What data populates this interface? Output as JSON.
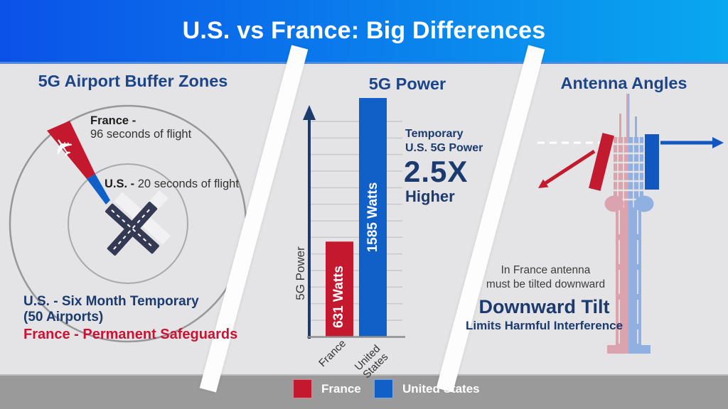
{
  "header": {
    "title": "U.S. vs France: Big Differences"
  },
  "panels": {
    "buffer_zones": {
      "title": "5G Airport Buffer Zones",
      "france_label": "France -",
      "france_value": "96 seconds of flight",
      "us_label": "U.S. -",
      "us_value": " 20 seconds of flight",
      "us_note_line1": "U.S. - Six Month Temporary",
      "us_note_line2": "(50 Airports)",
      "france_note": "France - Permanent Safeguards"
    },
    "power": {
      "title": "5G Power",
      "annotation": {
        "line1": "Temporary",
        "line2": "U.S. 5G Power",
        "big": "2.5X",
        "line3": "Higher"
      }
    },
    "antenna": {
      "title": "Antenna Angles",
      "note_line1": "In France antenna",
      "note_line2": "must be tilted downward",
      "headline": "Downward Tilt",
      "subline": "Limits Harmful Interference"
    }
  },
  "chart_data": {
    "type": "bar",
    "title": "5G Power",
    "ylabel": "5G Power",
    "categories": [
      "France",
      "United States"
    ],
    "values": [
      631,
      1585
    ],
    "bar_labels": [
      "631 Watts",
      "1585 Watts"
    ],
    "bar_colors": [
      "#c4182f",
      "#1160c8"
    ],
    "ylim": [
      0,
      1700
    ],
    "grid": true,
    "annotation": "Temporary U.S. 5G Power 2.5X Higher"
  },
  "legend": {
    "items": [
      {
        "label": "France",
        "color": "#c4182f"
      },
      {
        "label": "United States",
        "color": "#1160c8"
      }
    ]
  },
  "icons": {
    "plane": "✈"
  },
  "colors": {
    "header_gradient_left": "#0b52e8",
    "header_gradient_right": "#09a8f0",
    "background": "#e4e4e6",
    "footer": "#9a9a9a",
    "navy_text": "#1b3a6e",
    "title_blue": "#1c4489",
    "france_red": "#c4182f",
    "us_blue": "#1160c8",
    "red_text": "#cc1232",
    "tower_pink": "#dba3ad",
    "tower_blue": "#8fb0e0"
  }
}
